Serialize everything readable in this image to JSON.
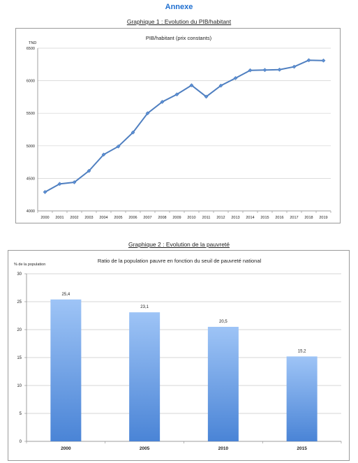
{
  "heading": "Annexe",
  "chart_data": [
    {
      "caption": "Graphique 1 : Evolution du PIB/habitant",
      "type": "line",
      "title": "PIB/habitant (prix constants)",
      "ylabel": "TND",
      "xlabel": "",
      "x": [
        "2000",
        "2001",
        "2002",
        "2003",
        "2004",
        "2005",
        "2006",
        "2007",
        "2008",
        "2009",
        "2010",
        "2011",
        "2012",
        "2013",
        "2014",
        "2015",
        "2016",
        "2017",
        "2018",
        "2019"
      ],
      "series": [
        {
          "values": [
            4290,
            4415,
            4440,
            4615,
            4865,
            4990,
            5205,
            5500,
            5675,
            5790,
            5930,
            5755,
            5925,
            6040,
            6160,
            6165,
            6170,
            6215,
            6315,
            6310
          ]
        }
      ],
      "ylim": [
        4000,
        6500
      ],
      "yticks": [
        4000,
        4500,
        5000,
        5500,
        6000,
        6500
      ],
      "grid": true,
      "line_color": "#4f7fc0"
    },
    {
      "caption": "Graphique 2 : Evolution de la pauvreté",
      "type": "bar",
      "title": "Ratio de la population pauvre en fonction du seuil de pauvreté national",
      "ylabel": "% de la population",
      "xlabel": "",
      "categories": [
        "2000",
        "2005",
        "2010",
        "2015"
      ],
      "values": [
        25.4,
        23.1,
        20.5,
        15.2
      ],
      "value_labels": [
        "25,4",
        "23,1",
        "20,5",
        "15,2"
      ],
      "ylim": [
        0,
        30
      ],
      "yticks": [
        0,
        5,
        10,
        15,
        20,
        25,
        30
      ],
      "grid": true,
      "bar_color_top": "#9ec4f6",
      "bar_color_bottom": "#4a84d6"
    }
  ]
}
